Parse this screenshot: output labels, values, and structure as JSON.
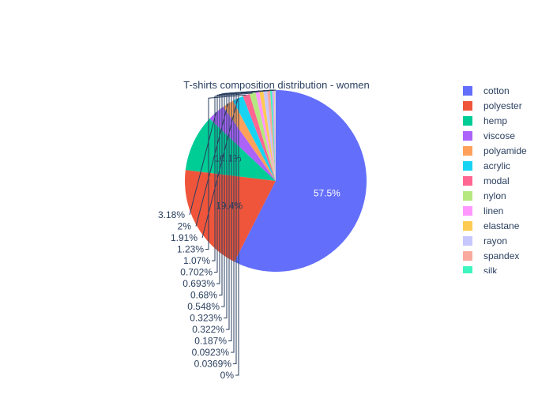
{
  "chart_data": {
    "type": "pie",
    "title": "T-shirts composition distribution - women",
    "slices": [
      {
        "label": "cotton",
        "value": 57.5,
        "text": "57.5%",
        "color": "#636efa"
      },
      {
        "label": "polyester",
        "value": 19.4,
        "text": "19.4%",
        "color": "#EF553B"
      },
      {
        "label": "hemp",
        "value": 10.1,
        "text": "10.1%",
        "color": "#00cc96"
      },
      {
        "label": "viscose",
        "value": 3.18,
        "text": "3.18%",
        "color": "#ab63fa"
      },
      {
        "label": "polyamide",
        "value": 2,
        "text": "2%",
        "color": "#FFA15A"
      },
      {
        "label": "acrylic",
        "value": 1.91,
        "text": "1.91%",
        "color": "#19d3f3"
      },
      {
        "label": "modal",
        "value": 1.23,
        "text": "1.23%",
        "color": "#FF6692"
      },
      {
        "label": "nylon",
        "value": 1.07,
        "text": "1.07%",
        "color": "#B6E880"
      },
      {
        "label": "linen",
        "value": 0.702,
        "text": "0.702%",
        "color": "#FF97FF"
      },
      {
        "label": "elastane",
        "value": 0.693,
        "text": "0.693%",
        "color": "#FECB52"
      },
      {
        "label": "rayon",
        "value": 0.68,
        "text": "0.68%",
        "color": "#c6c7fd"
      },
      {
        "label": "spandex",
        "value": 0.548,
        "text": "0.548%",
        "color": "#f7aa9d"
      },
      {
        "label": "silk",
        "value": 0.323,
        "text": "0.323%",
        "color": "#3ef5c0"
      },
      {
        "label": "",
        "value": 0.322,
        "text": "0.322%",
        "color": "#d0a8fc"
      },
      {
        "label": "",
        "value": 0.187,
        "text": "0.187%",
        "color": "#ffc59e"
      },
      {
        "label": "",
        "value": 0.0923,
        "text": "0.0923%",
        "color": "#8ee8f8"
      },
      {
        "label": "",
        "value": 0.0369,
        "text": "0.0369%",
        "color": "#ffb2c8"
      },
      {
        "label": "",
        "value": 0,
        "text": "0%",
        "color": "#d4f1b0"
      }
    ],
    "inside_label_color": "#ffffff",
    "inside_label_color_dark": "#2a3f5f",
    "legend_position": "right",
    "sort": "descending",
    "direction": "clockwise"
  }
}
